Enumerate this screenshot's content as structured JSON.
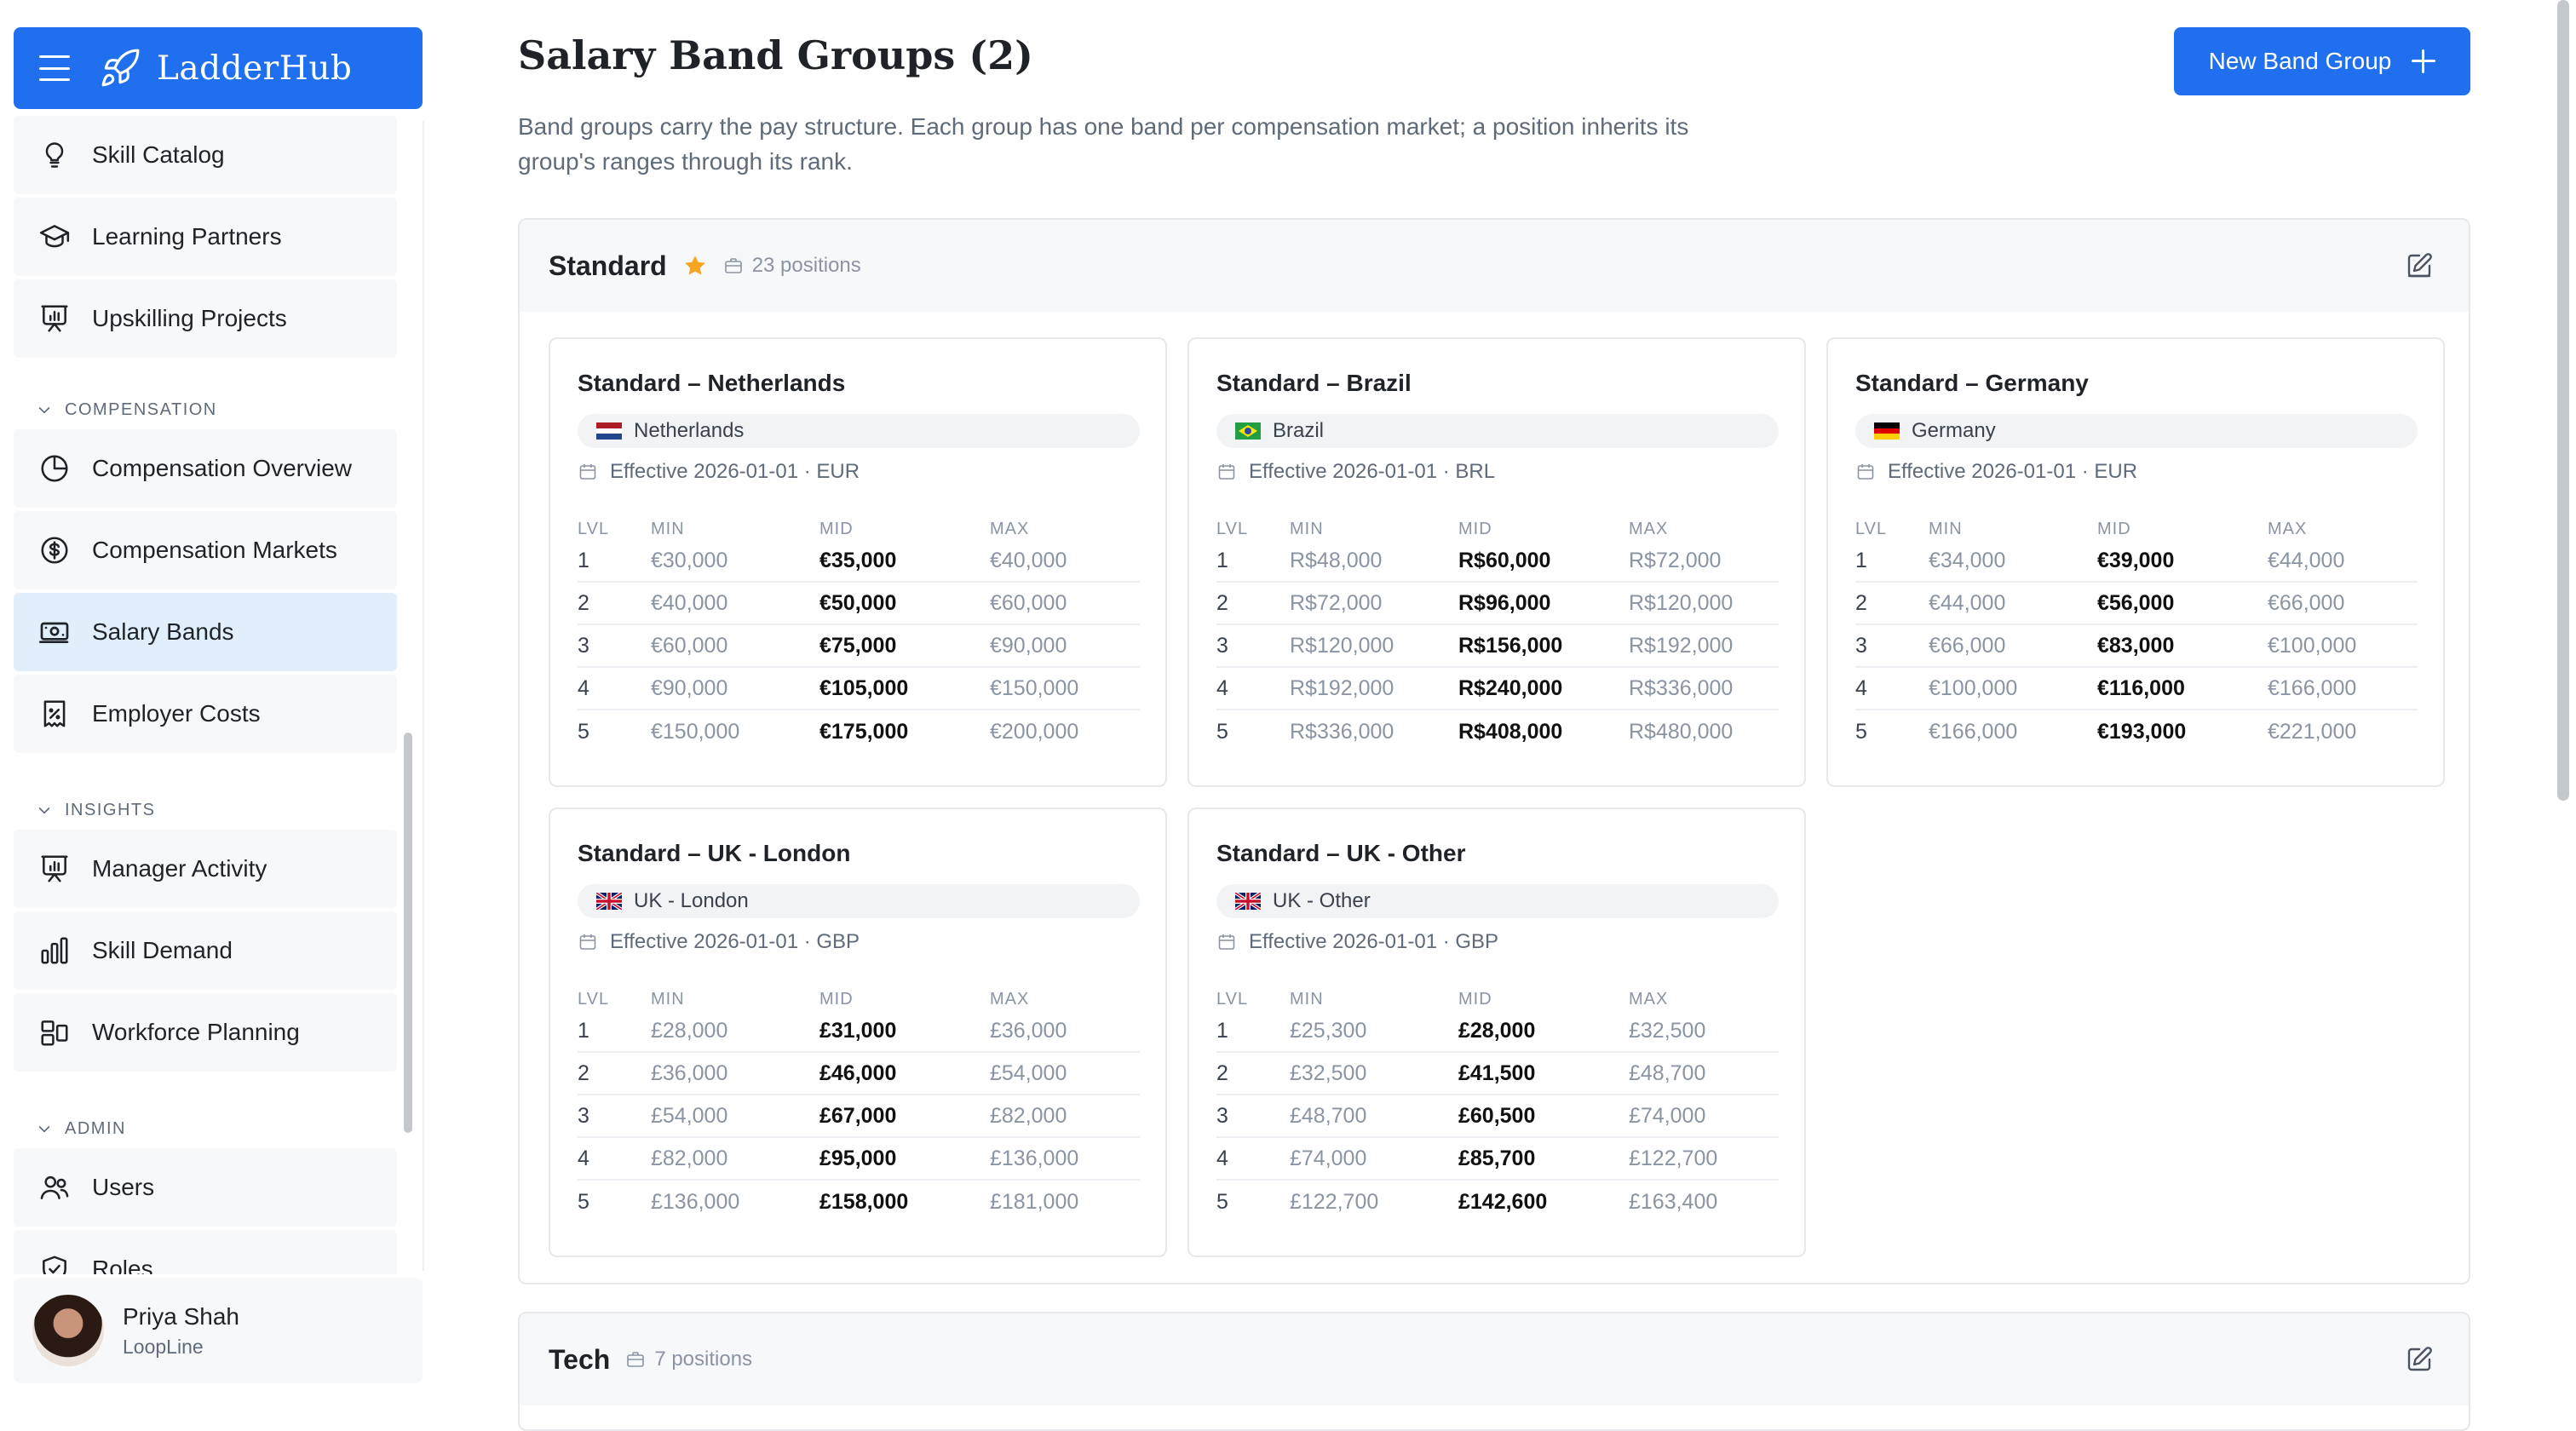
{
  "app": {
    "name": "LadderHub"
  },
  "sidebar": {
    "items_top": [
      {
        "label": "Skill Catalog",
        "icon": "lightbulb-icon"
      },
      {
        "label": "Learning Partners",
        "icon": "graduation-cap-icon"
      },
      {
        "label": "Upskilling Projects",
        "icon": "presentation-chart-icon"
      }
    ],
    "sections": [
      {
        "title": "COMPENSATION",
        "items": [
          {
            "label": "Compensation Overview",
            "icon": "pie-chart-icon"
          },
          {
            "label": "Compensation Markets",
            "icon": "dollar-circle-icon"
          },
          {
            "label": "Salary Bands",
            "icon": "banknote-icon",
            "active": true
          },
          {
            "label": "Employer Costs",
            "icon": "receipt-percent-icon"
          }
        ]
      },
      {
        "title": "INSIGHTS",
        "items": [
          {
            "label": "Manager Activity",
            "icon": "presentation-chart-icon"
          },
          {
            "label": "Skill Demand",
            "icon": "bar-chart-icon"
          },
          {
            "label": "Workforce Planning",
            "icon": "layout-blocks-icon"
          }
        ]
      },
      {
        "title": "ADMIN",
        "items": [
          {
            "label": "Users",
            "icon": "users-icon"
          },
          {
            "label": "Roles",
            "icon": "shield-check-icon"
          }
        ]
      }
    ],
    "user": {
      "name": "Priya Shah",
      "org": "LoopLine"
    }
  },
  "header": {
    "title": "Salary Band Groups (2)",
    "description": "Band groups carry the pay structure. Each group has one band per compensation market; a position inherits its group's ranges through its rank.",
    "new_button": "New Band Group"
  },
  "table_headers": {
    "lvl": "LVL",
    "min": "MIN",
    "mid": "MID",
    "max": "MAX"
  },
  "groups": [
    {
      "name": "Standard",
      "default": true,
      "positions": "23 positions",
      "bands": [
        {
          "title": "Standard – Netherlands",
          "market": "Netherlands",
          "flag": "nl",
          "effective": "Effective 2026-01-01 · EUR",
          "rows": [
            [
              "1",
              "€30,000",
              "€35,000",
              "€40,000"
            ],
            [
              "2",
              "€40,000",
              "€50,000",
              "€60,000"
            ],
            [
              "3",
              "€60,000",
              "€75,000",
              "€90,000"
            ],
            [
              "4",
              "€90,000",
              "€105,000",
              "€150,000"
            ],
            [
              "5",
              "€150,000",
              "€175,000",
              "€200,000"
            ]
          ]
        },
        {
          "title": "Standard – Brazil",
          "market": "Brazil",
          "flag": "br",
          "effective": "Effective 2026-01-01 · BRL",
          "rows": [
            [
              "1",
              "R$48,000",
              "R$60,000",
              "R$72,000"
            ],
            [
              "2",
              "R$72,000",
              "R$96,000",
              "R$120,000"
            ],
            [
              "3",
              "R$120,000",
              "R$156,000",
              "R$192,000"
            ],
            [
              "4",
              "R$192,000",
              "R$240,000",
              "R$336,000"
            ],
            [
              "5",
              "R$336,000",
              "R$408,000",
              "R$480,000"
            ]
          ]
        },
        {
          "title": "Standard – Germany",
          "market": "Germany",
          "flag": "de",
          "effective": "Effective 2026-01-01 · EUR",
          "rows": [
            [
              "1",
              "€34,000",
              "€39,000",
              "€44,000"
            ],
            [
              "2",
              "€44,000",
              "€56,000",
              "€66,000"
            ],
            [
              "3",
              "€66,000",
              "€83,000",
              "€100,000"
            ],
            [
              "4",
              "€100,000",
              "€116,000",
              "€166,000"
            ],
            [
              "5",
              "€166,000",
              "€193,000",
              "€221,000"
            ]
          ]
        },
        {
          "title": "Standard – UK - London",
          "market": "UK - London",
          "flag": "uk",
          "effective": "Effective 2026-01-01 · GBP",
          "rows": [
            [
              "1",
              "£28,000",
              "£31,000",
              "£36,000"
            ],
            [
              "2",
              "£36,000",
              "£46,000",
              "£54,000"
            ],
            [
              "3",
              "£54,000",
              "£67,000",
              "£82,000"
            ],
            [
              "4",
              "£82,000",
              "£95,000",
              "£136,000"
            ],
            [
              "5",
              "£136,000",
              "£158,000",
              "£181,000"
            ]
          ]
        },
        {
          "title": "Standard – UK - Other",
          "market": "UK - Other",
          "flag": "uk",
          "effective": "Effective 2026-01-01 · GBP",
          "rows": [
            [
              "1",
              "£25,300",
              "£28,000",
              "£32,500"
            ],
            [
              "2",
              "£32,500",
              "£41,500",
              "£48,700"
            ],
            [
              "3",
              "£48,700",
              "£60,500",
              "£74,000"
            ],
            [
              "4",
              "£74,000",
              "£85,700",
              "£122,700"
            ],
            [
              "5",
              "£122,700",
              "£142,600",
              "£163,400"
            ]
          ]
        }
      ]
    },
    {
      "name": "Tech",
      "default": false,
      "positions": "7 positions",
      "bands": []
    }
  ]
}
